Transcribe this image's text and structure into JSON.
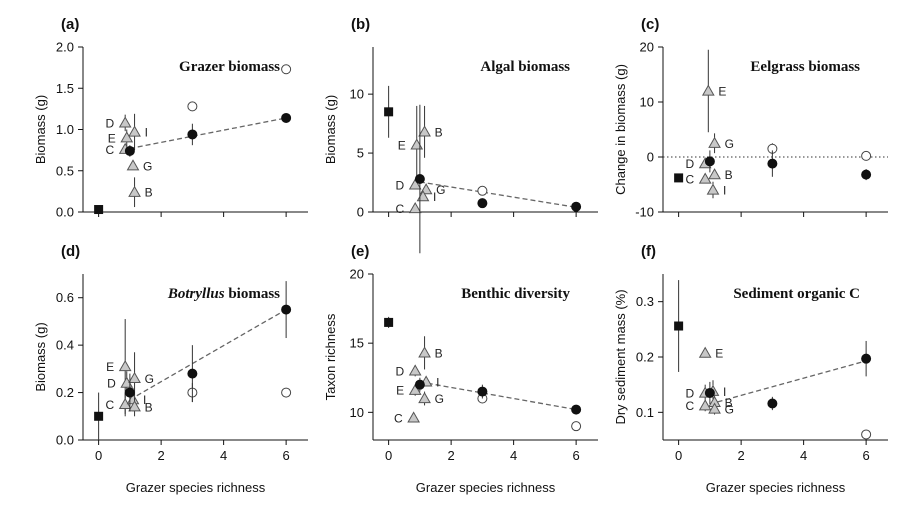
{
  "figure": {
    "xlabel": "Grazer species richness"
  },
  "chart_data": [
    {
      "type": "scatter",
      "letter": "(a)",
      "title": "Grazer biomass",
      "title_italic": "",
      "ylabel": "Biomass (g)",
      "xlim": [
        -0.5,
        6.7
      ],
      "ylim": [
        0,
        2.0
      ],
      "xticks": [
        0,
        2,
        4,
        6
      ],
      "yticks": [
        0,
        0.5,
        1.0,
        1.5,
        2.0
      ],
      "yticklabels": [
        "0.0",
        "0.5",
        "1.0",
        "1.5",
        "2.0"
      ],
      "baseline": null,
      "xtick_labels_shown": false,
      "trend": [
        [
          1,
          0.77
        ],
        [
          6,
          1.14
        ]
      ],
      "squares": [
        {
          "x": 0,
          "y": 0.03
        }
      ],
      "filled": [
        {
          "x": 1,
          "y": 0.74,
          "err": 0.07
        },
        {
          "x": 3,
          "y": 0.94,
          "err": 0.13
        },
        {
          "x": 6,
          "y": 1.14,
          "err": 0.03
        }
      ],
      "open": [
        {
          "x": 3,
          "y": 1.28,
          "err": 0.05
        },
        {
          "x": 6,
          "y": 1.73,
          "err": 0
        }
      ],
      "triangles": [
        {
          "label": "D",
          "x": 0.85,
          "y": 1.08,
          "err": 0.1,
          "side": "left"
        },
        {
          "label": "I",
          "x": 1.15,
          "y": 0.97,
          "err": 0.22,
          "side": "right"
        },
        {
          "label": "E",
          "x": 0.9,
          "y": 0.9,
          "err": 0.1,
          "side": "left"
        },
        {
          "label": "C",
          "x": 0.85,
          "y": 0.76,
          "err": 0,
          "side": "left"
        },
        {
          "label": "G",
          "x": 1.1,
          "y": 0.56,
          "err": 0.05,
          "side": "right"
        },
        {
          "label": "B",
          "x": 1.15,
          "y": 0.24,
          "err": 0.18,
          "side": "right"
        }
      ]
    },
    {
      "type": "scatter",
      "letter": "(b)",
      "title": "Algal biomass",
      "title_italic": "",
      "ylabel": "Biomass (g)",
      "xlim": [
        -0.5,
        6.7
      ],
      "ylim": [
        0,
        14
      ],
      "xticks": [
        0,
        2,
        4,
        6
      ],
      "yticks": [
        0,
        5,
        10
      ],
      "yticklabels": [
        "0",
        "5",
        "10"
      ],
      "baseline": null,
      "xtick_labels_shown": false,
      "trend": [
        [
          1,
          2.55
        ],
        [
          6,
          0.4
        ]
      ],
      "squares": [
        {
          "x": 0,
          "y": 8.5,
          "err": 2.2
        }
      ],
      "filled": [
        {
          "x": 1,
          "y": 2.8,
          "err": 6.3
        },
        {
          "x": 3,
          "y": 0.75,
          "err": 0.1
        },
        {
          "x": 6,
          "y": 0.45,
          "err": 0.1
        }
      ],
      "open": [
        {
          "x": 3,
          "y": 1.8,
          "err": 0.15
        }
      ],
      "triangles": [
        {
          "label": "E",
          "x": 0.9,
          "y": 5.7,
          "err": 3.3,
          "side": "left"
        },
        {
          "label": "B",
          "x": 1.15,
          "y": 6.8,
          "err": 2.2,
          "side": "right"
        },
        {
          "label": "D",
          "x": 0.85,
          "y": 2.3,
          "err": 0.3,
          "side": "left"
        },
        {
          "label": "G",
          "x": 1.2,
          "y": 1.9,
          "err": 0.3,
          "side": "right"
        },
        {
          "label": "I",
          "x": 1.1,
          "y": 1.3,
          "err": 0.3,
          "side": "right"
        },
        {
          "label": "C",
          "x": 0.85,
          "y": 0.3,
          "err": 0,
          "side": "left"
        }
      ]
    },
    {
      "type": "scatter",
      "letter": "(c)",
      "title": "Eelgrass biomass",
      "title_italic": "",
      "ylabel": "Change in biomass (g)",
      "xlim": [
        -0.5,
        6.7
      ],
      "ylim": [
        -10,
        20
      ],
      "xticks": [
        0,
        2,
        4,
        6
      ],
      "yticks": [
        -10,
        0,
        10,
        20
      ],
      "yticklabels": [
        "-10",
        "0",
        "10",
        "20"
      ],
      "baseline": 0,
      "xtick_labels_shown": false,
      "trend": null,
      "squares": [
        {
          "x": 0,
          "y": -3.8
        }
      ],
      "filled": [
        {
          "x": 1,
          "y": -0.8,
          "err": 2.0
        },
        {
          "x": 3,
          "y": -1.2,
          "err": 2.4
        },
        {
          "x": 6,
          "y": -3.2,
          "err": 1.0
        }
      ],
      "open": [
        {
          "x": 3,
          "y": 1.5,
          "err": 1.0
        },
        {
          "x": 6,
          "y": 0.2,
          "err": 0
        }
      ],
      "triangles": [
        {
          "label": "E",
          "x": 0.95,
          "y": 12.0,
          "err": 7.5,
          "side": "right"
        },
        {
          "label": "G",
          "x": 1.15,
          "y": 2.5,
          "err": 1.8,
          "side": "right"
        },
        {
          "label": "D",
          "x": 0.85,
          "y": -1.2,
          "err": 0.8,
          "side": "left"
        },
        {
          "label": "B",
          "x": 1.15,
          "y": -3.2,
          "err": 0.8,
          "side": "right"
        },
        {
          "label": "C",
          "x": 0.85,
          "y": -4.0,
          "err": 0.8,
          "side": "left"
        },
        {
          "label": "I",
          "x": 1.1,
          "y": -6.0,
          "err": 1.5,
          "side": "right"
        }
      ]
    },
    {
      "type": "scatter",
      "letter": "(d)",
      "title": "biomass",
      "title_italic": "Botryllus",
      "ylabel": "Biomass (g)",
      "xlim": [
        -0.5,
        6.7
      ],
      "ylim": [
        0,
        0.7
      ],
      "xticks": [
        0,
        2,
        4,
        6
      ],
      "yticks": [
        0,
        0.2,
        0.4,
        0.6
      ],
      "yticklabels": [
        "0.0",
        "0.2",
        "0.4",
        "0.6"
      ],
      "baseline": null,
      "xtick_labels_shown": true,
      "trend": [
        [
          1,
          0.17
        ],
        [
          6,
          0.55
        ]
      ],
      "squares": [
        {
          "x": 0,
          "y": 0.1,
          "err": 0.1
        }
      ],
      "filled": [
        {
          "x": 1,
          "y": 0.2,
          "err": 0.08
        },
        {
          "x": 3,
          "y": 0.28,
          "err": 0.12
        },
        {
          "x": 6,
          "y": 0.55,
          "err": 0.12
        }
      ],
      "open": [
        {
          "x": 3,
          "y": 0.2,
          "err": 0.04
        },
        {
          "x": 6,
          "y": 0.2,
          "err": 0
        }
      ],
      "triangles": [
        {
          "label": "E",
          "x": 0.85,
          "y": 0.31,
          "err": 0.2,
          "side": "left"
        },
        {
          "label": "D",
          "x": 0.9,
          "y": 0.24,
          "err": 0.05,
          "side": "left"
        },
        {
          "label": "G",
          "x": 1.15,
          "y": 0.26,
          "err": 0.11,
          "side": "right"
        },
        {
          "label": "C",
          "x": 0.85,
          "y": 0.15,
          "err": 0.05,
          "side": "left"
        },
        {
          "label": "I",
          "x": 1.1,
          "y": 0.17,
          "err": 0.05,
          "side": "right"
        },
        {
          "label": "B",
          "x": 1.15,
          "y": 0.14,
          "err": 0.04,
          "side": "right"
        }
      ]
    },
    {
      "type": "scatter",
      "letter": "(e)",
      "title": "Benthic diversity",
      "title_italic": "",
      "ylabel": "Taxon richness",
      "xlim": [
        -0.5,
        6.7
      ],
      "ylim": [
        8,
        20
      ],
      "xticks": [
        0,
        2,
        4,
        6
      ],
      "yticks": [
        10,
        15,
        20
      ],
      "yticklabels": [
        "10",
        "15",
        "20"
      ],
      "baseline": null,
      "xtick_labels_shown": true,
      "trend": [
        [
          1,
          12.2
        ],
        [
          6,
          10.2
        ]
      ],
      "squares": [
        {
          "x": 0,
          "y": 16.5,
          "err": 0.4
        }
      ],
      "filled": [
        {
          "x": 1,
          "y": 12.0,
          "err": 0.5
        },
        {
          "x": 3,
          "y": 11.5,
          "err": 0.5
        },
        {
          "x": 6,
          "y": 10.2,
          "err": 0.3
        }
      ],
      "open": [
        {
          "x": 3,
          "y": 11.0,
          "err": 0.3
        },
        {
          "x": 6,
          "y": 9.0,
          "err": 0
        }
      ],
      "triangles": [
        {
          "label": "B",
          "x": 1.15,
          "y": 14.3,
          "err": 1.2,
          "side": "right"
        },
        {
          "label": "D",
          "x": 0.85,
          "y": 13.0,
          "err": 0.4,
          "side": "left"
        },
        {
          "label": "I",
          "x": 1.2,
          "y": 12.2,
          "err": 0.3,
          "side": "right"
        },
        {
          "label": "E",
          "x": 0.85,
          "y": 11.6,
          "err": 0.4,
          "side": "left"
        },
        {
          "label": "G",
          "x": 1.15,
          "y": 11.0,
          "err": 0.5,
          "side": "right"
        },
        {
          "label": "C",
          "x": 0.8,
          "y": 9.6,
          "err": 0.3,
          "side": "left"
        }
      ]
    },
    {
      "type": "scatter",
      "letter": "(f)",
      "title": "Sediment organic C",
      "title_italic": "",
      "ylabel": "Dry sediment mass (%)",
      "xlim": [
        -0.5,
        6.7
      ],
      "ylim": [
        0.05,
        0.35
      ],
      "xticks": [
        0,
        2,
        4,
        6
      ],
      "yticks": [
        0.1,
        0.2,
        0.3
      ],
      "yticklabels": [
        "0.1",
        "0.2",
        "0.3"
      ],
      "baseline": null,
      "xtick_labels_shown": true,
      "trend": [
        [
          1,
          0.115
        ],
        [
          6,
          0.193
        ]
      ],
      "squares": [
        {
          "x": 0,
          "y": 0.256,
          "err": 0.083
        }
      ],
      "filled": [
        {
          "x": 1,
          "y": 0.135,
          "err": 0.02
        },
        {
          "x": 3,
          "y": 0.116,
          "err": 0.012
        },
        {
          "x": 6,
          "y": 0.197,
          "err": 0.032
        }
      ],
      "open": [
        {
          "x": 6,
          "y": 0.06,
          "err": 0
        }
      ],
      "triangles": [
        {
          "label": "E",
          "x": 0.85,
          "y": 0.207,
          "err": 0.008,
          "side": "right"
        },
        {
          "label": "D",
          "x": 0.85,
          "y": 0.135,
          "err": 0.015,
          "side": "left"
        },
        {
          "label": "I",
          "x": 1.1,
          "y": 0.138,
          "err": 0.02,
          "side": "right"
        },
        {
          "label": "B",
          "x": 1.15,
          "y": 0.118,
          "err": 0.012,
          "side": "right"
        },
        {
          "label": "C",
          "x": 0.85,
          "y": 0.112,
          "err": 0.01,
          "side": "left"
        },
        {
          "label": "G",
          "x": 1.15,
          "y": 0.106,
          "err": 0.01,
          "side": "right"
        }
      ]
    }
  ]
}
